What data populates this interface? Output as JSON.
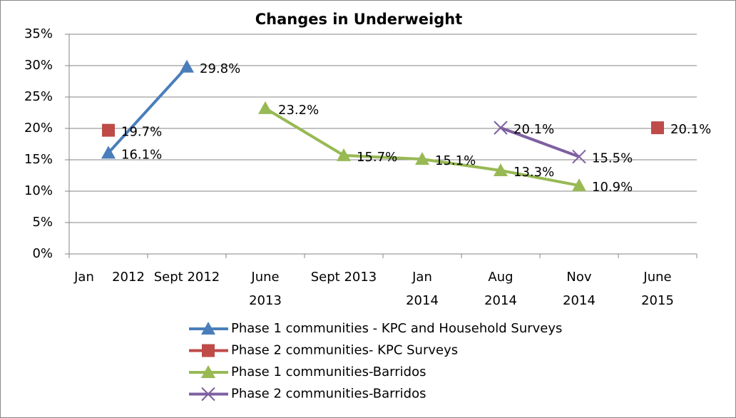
{
  "chart_data": {
    "type": "line",
    "title": "Changes in Underweight",
    "categories": [
      "Jan 2012",
      "Sept 2012",
      "June 2013",
      "Sept 2013",
      "Jan 2014",
      "Aug 2014",
      "Nov 2014",
      "June 2015"
    ],
    "series": [
      {
        "name": "Phase 1 communities - KPC and Household Surveys",
        "color": "#4a7ebb",
        "marker": "triangle",
        "values": [
          16.1,
          29.8,
          null,
          null,
          null,
          null,
          null,
          null
        ],
        "value_labels": [
          "16.1%",
          "29.8%",
          null,
          null,
          null,
          null,
          null,
          null
        ]
      },
      {
        "name": "Phase 2 communities- KPC Surveys",
        "color": "#be4b48",
        "marker": "square",
        "values": [
          19.7,
          null,
          null,
          null,
          null,
          null,
          null,
          20.1
        ],
        "value_labels": [
          "19.7%",
          null,
          null,
          null,
          null,
          null,
          null,
          "20.1%"
        ]
      },
      {
        "name": "Phase 1 communities-Barridos",
        "color": "#98b954",
        "marker": "triangle",
        "values": [
          null,
          null,
          23.2,
          15.7,
          15.1,
          13.3,
          10.9,
          null
        ],
        "value_labels": [
          null,
          null,
          "23.2%",
          "15.7%",
          "15.1%",
          "13.3%",
          "10.9%",
          null
        ]
      },
      {
        "name": "Phase 2 communities-Barridos",
        "color": "#7d60a0",
        "marker": "x",
        "values": [
          null,
          null,
          null,
          null,
          null,
          20.1,
          15.5,
          null
        ],
        "value_labels": [
          null,
          null,
          null,
          null,
          null,
          "20.1%",
          "15.5%",
          null
        ]
      }
    ],
    "ylim": [
      0,
      35
    ],
    "yticks": [
      {
        "value": 0,
        "label": "0%"
      },
      {
        "value": 5,
        "label": "5%"
      },
      {
        "value": 10,
        "label": "10%"
      },
      {
        "value": 15,
        "label": "15%"
      },
      {
        "value": 20,
        "label": "20%"
      },
      {
        "value": 25,
        "label": "25%"
      },
      {
        "value": 30,
        "label": "30%"
      },
      {
        "value": 35,
        "label": "35%"
      }
    ],
    "grid": true,
    "legend": "bottom"
  }
}
